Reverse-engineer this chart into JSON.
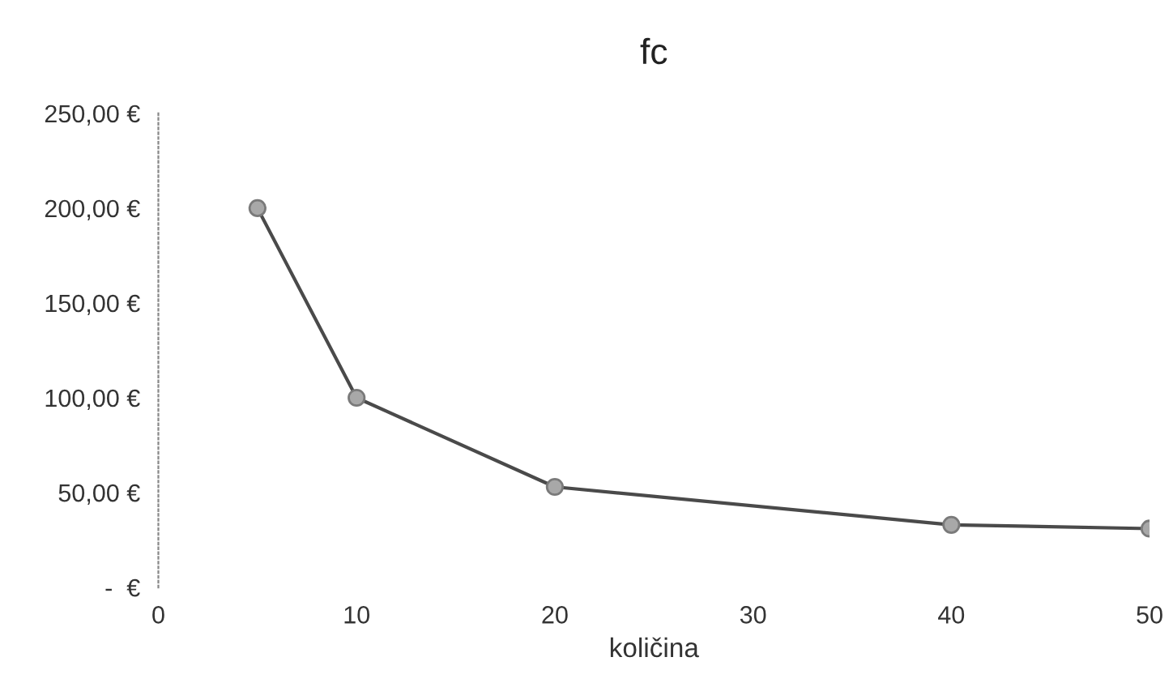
{
  "chart_data": {
    "type": "line",
    "title": "fc",
    "xlabel": "količina",
    "x": [
      5,
      10,
      20,
      40,
      50
    ],
    "series": [
      {
        "color": "#4a4a4a",
        "values": [
          200,
          100,
          53,
          33,
          31
        ]
      }
    ],
    "xlim": [
      0,
      50
    ],
    "xticks": [
      0,
      10,
      20,
      30,
      40,
      50
    ],
    "ylim": [
      0,
      250
    ],
    "yticks": [
      {
        "value": 0,
        "label": "-  €"
      },
      {
        "value": 50,
        "label": "50,00 €"
      },
      {
        "value": 100,
        "label": "100,00 €"
      },
      {
        "value": 150,
        "label": "150,00 €"
      },
      {
        "value": 200,
        "label": "200,00 €"
      },
      {
        "value": 250,
        "label": "250,00 €"
      }
    ],
    "grid": false,
    "legend": false,
    "marker": "circle",
    "line_style": "solid"
  }
}
